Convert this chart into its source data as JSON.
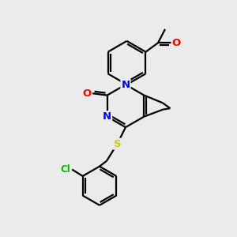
{
  "background_color": "#ebebeb",
  "bond_color": "#000000",
  "bond_width": 1.6,
  "atom_colors": {
    "N": "#0000ff",
    "O": "#ff0000",
    "S": "#cccc00",
    "Cl": "#00bb00",
    "C": "#000000"
  },
  "figsize": [
    3.0,
    3.0
  ],
  "dpi": 100,
  "xlim": [
    0,
    10
  ],
  "ylim": [
    0,
    10
  ]
}
